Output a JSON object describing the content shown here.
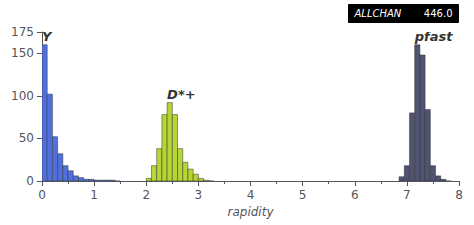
{
  "chart_data": {
    "type": "histogram",
    "xlabel": "rapidity",
    "xlim": [
      0,
      8
    ],
    "ylim": [
      0,
      175
    ],
    "xticks": [
      0,
      1,
      2,
      3,
      4,
      5,
      6,
      7,
      8
    ],
    "yticks": [
      0,
      50,
      100,
      150
    ],
    "grid": false,
    "series": [
      {
        "name": "Y",
        "bins": [
          0.0,
          0.1,
          0.2,
          0.3,
          0.4,
          0.5,
          0.6,
          0.7,
          0.8,
          0.9,
          1.0,
          1.1,
          1.2,
          1.3,
          1.4,
          1.5
        ],
        "values": [
          160,
          102,
          52,
          32,
          18,
          12,
          6,
          4,
          2,
          2,
          1,
          1,
          1,
          1,
          0
        ]
      },
      {
        "name": "D*+",
        "bins": [
          2.0,
          2.1,
          2.2,
          2.3,
          2.4,
          2.5,
          2.6,
          2.7,
          2.8,
          2.9,
          3.0,
          3.1,
          3.2,
          3.3
        ],
        "values": [
          3,
          18,
          38,
          78,
          92,
          78,
          38,
          22,
          14,
          8,
          3,
          1,
          0
        ]
      },
      {
        "name": "pfast",
        "bins": [
          6.85,
          6.95,
          7.05,
          7.15,
          7.25,
          7.35,
          7.45,
          7.55,
          7.65,
          7.75,
          7.85
        ],
        "values": [
          5,
          18,
          80,
          160,
          148,
          84,
          18,
          6,
          2,
          0
        ]
      }
    ],
    "annotations": [
      "ALLCHAN",
      "446.0"
    ]
  }
}
